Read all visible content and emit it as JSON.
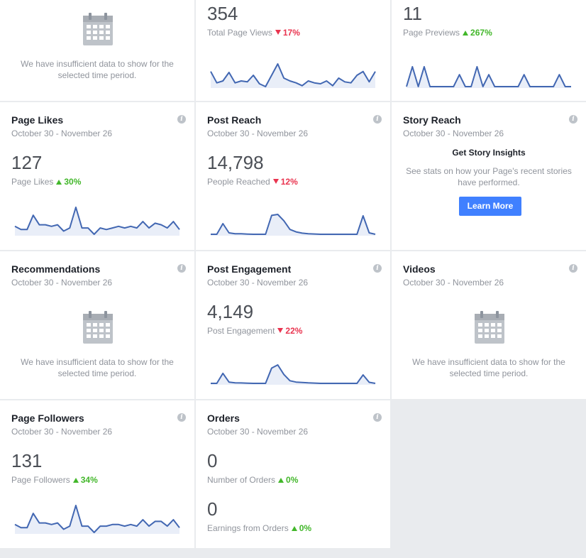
{
  "date_range": "October 30 - November 26",
  "info_glyph": "i",
  "insufficient_text": "We have insufficient data to show for the selected time period.",
  "colors": {
    "accent": "#4267b2",
    "spark_fill": "#e9eef8",
    "up": "#42b72a",
    "down": "#e9344f",
    "button": "#4080ff",
    "background": "#e9ebee"
  },
  "row1": {
    "actions": {
      "icon": "calendar-icon"
    },
    "page_views": {
      "value": "354",
      "label": "Total Page Views",
      "change": "17%",
      "direction": "down"
    },
    "page_previews": {
      "value": "11",
      "label": "Page Previews",
      "change": "267%",
      "direction": "up"
    }
  },
  "page_likes": {
    "title": "Page Likes",
    "value": "127",
    "label": "Page Likes",
    "change": "30%",
    "direction": "up"
  },
  "post_reach": {
    "title": "Post Reach",
    "value": "14,798",
    "label": "People Reached",
    "change": "12%",
    "direction": "down"
  },
  "story_reach": {
    "title": "Story Reach",
    "heading": "Get Story Insights",
    "description": "See stats on how your Page's recent stories have performed.",
    "button": "Learn More"
  },
  "recommendations": {
    "title": "Recommendations",
    "icon": "calendar-icon"
  },
  "post_engagement": {
    "title": "Post Engagement",
    "value": "4,149",
    "label": "Post Engagement",
    "change": "22%",
    "direction": "down"
  },
  "videos": {
    "title": "Videos",
    "icon": "calendar-icon"
  },
  "page_followers": {
    "title": "Page Followers",
    "value": "131",
    "label": "Page Followers",
    "change": "34%",
    "direction": "up"
  },
  "orders": {
    "title": "Orders",
    "orders_value": "0",
    "orders_label": "Number of Orders",
    "orders_change": "0%",
    "orders_direction": "up",
    "earnings_value": "0",
    "earnings_label": "Earnings from Orders",
    "earnings_change": "0%",
    "earnings_direction": "up"
  },
  "sparklines": {
    "page_views": [
      22,
      10,
      12,
      21,
      10,
      12,
      11,
      18,
      9,
      6,
      18,
      30,
      15,
      12,
      10,
      7,
      12,
      10,
      9,
      12,
      7,
      15,
      11,
      10,
      18,
      22,
      11,
      22
    ],
    "page_previews": [
      0,
      1,
      0,
      1,
      0,
      0,
      0,
      0,
      0,
      0.6,
      0,
      0,
      1,
      0,
      0.6,
      0,
      0,
      0,
      0,
      0,
      0.6,
      0,
      0,
      0,
      0,
      0,
      0.6,
      0,
      0
    ],
    "page_likes": [
      3,
      1,
      1,
      10,
      4,
      4,
      3,
      4,
      0,
      2,
      15,
      2,
      2,
      -2,
      2,
      1,
      2,
      3,
      2,
      3,
      2,
      6,
      2,
      5,
      4,
      2,
      6,
      1
    ],
    "post_reach": [
      0,
      0,
      1.1,
      0.15,
      0.05,
      0.05,
      0.02,
      0,
      0,
      0,
      1.95,
      2.05,
      1.4,
      0.5,
      0.25,
      0.12,
      0.06,
      0.03,
      0,
      0,
      0,
      0,
      0,
      0,
      0,
      1.9,
      0.15,
      0
    ],
    "post_engagement": [
      0,
      0,
      0.95,
      0.12,
      0.05,
      0.04,
      0.02,
      0,
      0,
      0,
      1.45,
      1.75,
      0.85,
      0.25,
      0.12,
      0.08,
      0.05,
      0.03,
      0,
      0,
      0,
      0,
      0,
      0,
      0,
      0.8,
      0.1,
      0
    ],
    "page_followers": [
      3,
      1,
      1,
      10,
      4,
      4,
      3,
      4,
      0,
      2,
      15,
      2,
      2,
      -2,
      2,
      2,
      3,
      3,
      2,
      3,
      2,
      6,
      2,
      5,
      5,
      2,
      6,
      1
    ]
  }
}
